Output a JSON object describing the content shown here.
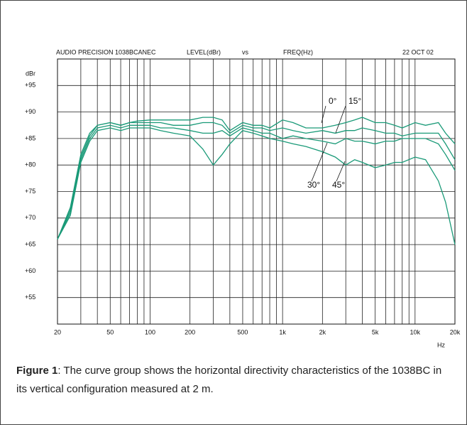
{
  "chart_data": {
    "type": "line",
    "header": [
      "AUDIO  PRECISION  1038BCANEC",
      "LEVEL(dBr)",
      "vs",
      "FREQ(Hz)",
      "22  OCT  02"
    ],
    "y_label": "dBr",
    "x_label": "Hz",
    "log_x": true,
    "grid": true,
    "xlim": [
      20,
      20000
    ],
    "ylim": [
      50,
      100
    ],
    "xticks": [
      20,
      50,
      100,
      200,
      500,
      {
        "value": 1000,
        "label": "1k"
      },
      {
        "value": 2000,
        "label": "2k"
      },
      {
        "value": 5000,
        "label": "5k"
      },
      {
        "value": 10000,
        "label": "10k"
      },
      {
        "value": 20000,
        "label": "20k"
      }
    ],
    "x_grid": [
      30,
      40,
      60,
      70,
      80,
      90,
      300,
      400,
      600,
      700,
      800,
      900,
      3000,
      4000,
      6000,
      7000,
      8000,
      9000
    ],
    "yticks": [
      {
        "value": 55,
        "label": "+55"
      },
      {
        "value": 60,
        "label": "+60"
      },
      {
        "value": 65,
        "label": "+65"
      },
      {
        "value": 70,
        "label": "+70"
      },
      {
        "value": 75,
        "label": "+75"
      },
      {
        "value": 80,
        "label": "+80"
      },
      {
        "value": 85,
        "label": "+85"
      },
      {
        "value": 90,
        "label": "+90"
      },
      {
        "value": 95,
        "label": "+95"
      }
    ],
    "x": [
      20,
      25,
      30,
      35,
      40,
      50,
      60,
      70,
      80,
      100,
      120,
      150,
      200,
      250,
      300,
      350,
      400,
      500,
      600,
      700,
      800,
      1000,
      1200,
      1500,
      2000,
      2500,
      3000,
      3500,
      4000,
      5000,
      6000,
      7000,
      8000,
      10000,
      12000,
      15000,
      17000,
      20000
    ],
    "series": [
      {
        "name": "0°",
        "color": "#1a9a78",
        "values": [
          66,
          72,
          82,
          86,
          87.5,
          88,
          87.5,
          88,
          88.3,
          88.5,
          88.5,
          88.5,
          88.5,
          89,
          89,
          88.5,
          86.5,
          88,
          87.5,
          87.5,
          87,
          88.5,
          88,
          87,
          87,
          87.5,
          88,
          88.5,
          89,
          88,
          88,
          87.5,
          87,
          88,
          87.5,
          88,
          86,
          84
        ]
      },
      {
        "name": "15°",
        "color": "#1a9a78",
        "values": [
          66,
          71.5,
          81.5,
          85.5,
          87.5,
          88,
          87.5,
          88,
          88,
          88,
          88,
          87.5,
          87.5,
          88,
          88,
          87.5,
          86,
          87.5,
          87,
          87,
          86.5,
          87,
          86.5,
          86,
          86.5,
          86,
          86.5,
          86.5,
          87,
          86.5,
          86,
          86,
          85.5,
          86,
          86,
          86,
          84,
          81
        ]
      },
      {
        "name": "30°",
        "color": "#1a9a78",
        "values": [
          66,
          71,
          81,
          85,
          87,
          87.5,
          87,
          87.5,
          87.5,
          87.5,
          87,
          87,
          86.5,
          86,
          86,
          86.5,
          85.5,
          87,
          86.5,
          86,
          86,
          85,
          85.5,
          85,
          84.5,
          84,
          85,
          84.5,
          84.5,
          84,
          84.5,
          84.5,
          85,
          85,
          85,
          84,
          82,
          79
        ]
      },
      {
        "name": "45°",
        "color": "#1a9a78",
        "values": [
          66,
          70.5,
          80.5,
          84.5,
          86.5,
          87,
          86.5,
          87,
          87,
          87,
          86.5,
          86,
          85.5,
          83,
          80,
          82,
          84,
          86.5,
          86,
          85.5,
          85,
          84.5,
          84,
          83.5,
          82.5,
          81.5,
          80,
          81,
          80.5,
          79.5,
          80,
          80.5,
          80.5,
          81.5,
          81,
          77,
          73,
          65
        ]
      }
    ]
  },
  "caption": {
    "label": "Figure 1",
    "text": ": The curve group shows the horizontal directivity characteristics of the 1038BC in its vertical configuration measured at 2 m."
  }
}
